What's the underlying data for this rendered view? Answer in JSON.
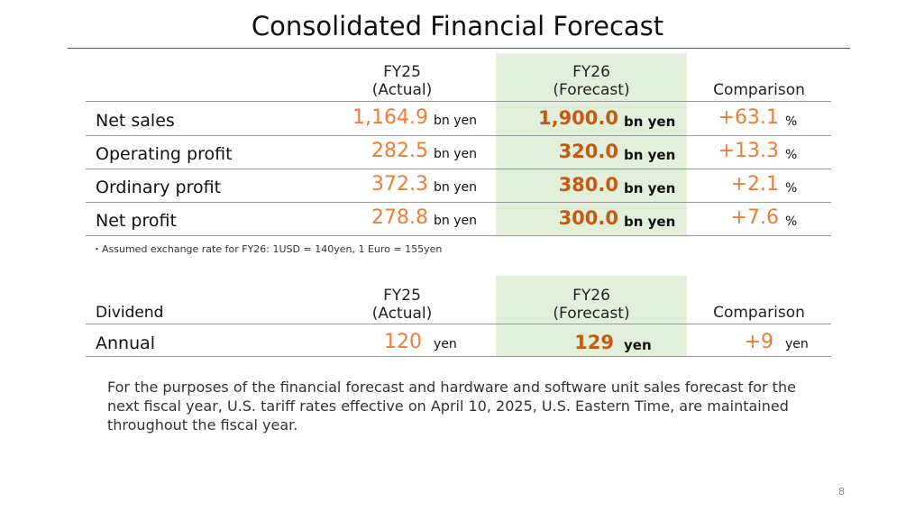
{
  "title": "Consolidated Financial Forecast",
  "table1": {
    "headers": {
      "fy25": "FY25",
      "fy25_sub": "(Actual)",
      "fy26": "FY26",
      "fy26_sub": "(Forecast)",
      "comparison": "Comparison"
    },
    "rows": [
      {
        "label": "Net sales",
        "fy25": "1,164.9",
        "fy25_unit": "bn yen",
        "fy26": "1,900.0",
        "fy26_unit": "bn yen",
        "comp": "+63.1",
        "comp_unit": "%"
      },
      {
        "label": "Operating profit",
        "fy25": "282.5",
        "fy25_unit": "bn yen",
        "fy26": "320.0",
        "fy26_unit": "bn yen",
        "comp": "+13.3",
        "comp_unit": "%"
      },
      {
        "label": "Ordinary profit",
        "fy25": "372.3",
        "fy25_unit": "bn yen",
        "fy26": "380.0",
        "fy26_unit": "bn yen",
        "comp": "+2.1",
        "comp_unit": "%"
      },
      {
        "label": "Net profit",
        "fy25": "278.8",
        "fy25_unit": "bn yen",
        "fy26": "300.0",
        "fy26_unit": "bn yen",
        "comp": "+7.6",
        "comp_unit": "%"
      }
    ]
  },
  "note": "・Assumed exchange rate for FY26: 1USD = 140yen, 1 Euro = 155yen",
  "table2": {
    "headers": {
      "label": "Dividend",
      "fy25": "FY25",
      "fy25_sub": "(Actual)",
      "fy26": "FY26",
      "fy26_sub": "(Forecast)",
      "comparison": "Comparison"
    },
    "row": {
      "label": "Annual",
      "fy25": "120",
      "fy25_unit": "yen",
      "fy26": "129",
      "fy26_unit": "yen",
      "comp": "+9",
      "comp_unit": "yen"
    }
  },
  "paragraph": "For the purposes of the financial forecast and hardware and software unit sales forecast for the next fiscal year, U.S. tariff rates effective on April 10, 2025, U.S. Eastern Time, are maintained throughout the fiscal year.",
  "page_number": "8",
  "colors": {
    "accent": "#ed7d31",
    "accent_bold": "#c55a11",
    "highlight": "#e2efda"
  }
}
